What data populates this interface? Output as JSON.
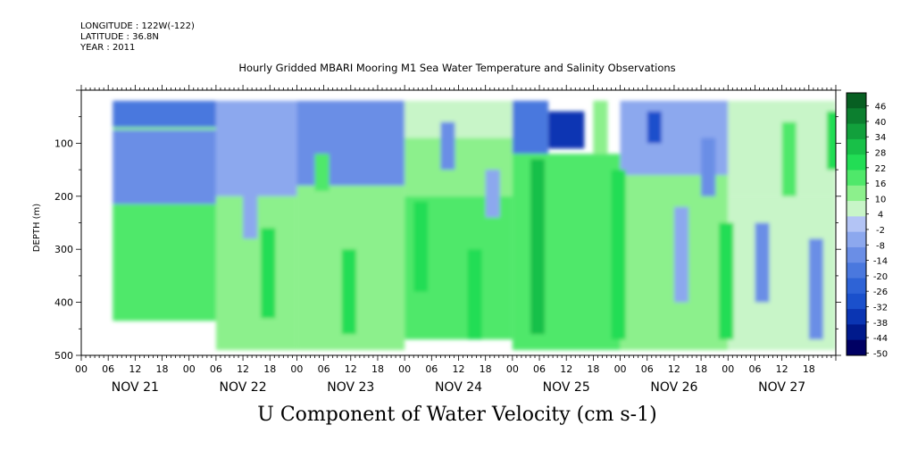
{
  "meta": {
    "longitude": "LONGITUDE : 122W(-122)",
    "latitude": "LATITUDE : 36.8N",
    "year": "YEAR : 2011"
  },
  "title": "Hourly Gridded MBARI Mooring M1 Sea Water Temperature and Salinity Observations",
  "footer": "U Component of Water Velocity (cm s-1)",
  "chart_data": {
    "type": "heatmap",
    "title": "Hourly Gridded MBARI Mooring M1 Sea Water Temperature and Salinity Observations",
    "variable": "U Component of Water Velocity (cm s-1)",
    "ylabel": "DEPTH (m)",
    "ylim": [
      500,
      0
    ],
    "y_ticks": [
      100,
      200,
      300,
      400,
      500
    ],
    "x_hour_ticks": [
      "00",
      "06",
      "12",
      "18",
      "00",
      "06",
      "12",
      "18",
      "00",
      "06",
      "12",
      "18",
      "00",
      "06",
      "12",
      "18",
      "00",
      "06",
      "12",
      "18",
      "00",
      "06",
      "12",
      "18",
      "00",
      "06",
      "12",
      "18"
    ],
    "x_day_labels": [
      "NOV 21",
      "NOV 22",
      "NOV 23",
      "NOV 24",
      "NOV 25",
      "NOV 26",
      "NOV 27"
    ],
    "colorbar": {
      "labels": [
        "46",
        "40",
        "34",
        "28",
        "22",
        "16",
        "10",
        "4",
        "-2",
        "-8",
        "-14",
        "-20",
        "-26",
        "-32",
        "-38",
        "-44",
        "-50"
      ],
      "range": [
        -50,
        49
      ]
    },
    "regions": [
      {
        "t0": 7,
        "t1": 30,
        "d0": 20,
        "d1": 70,
        "v": -16
      },
      {
        "t0": 7,
        "t1": 30,
        "d0": 70,
        "d1": 75,
        "v": 10
      },
      {
        "t0": 7,
        "t1": 30,
        "d0": 75,
        "d1": 215,
        "v": -14
      },
      {
        "t0": 7,
        "t1": 30,
        "d0": 215,
        "d1": 435,
        "v": 18
      },
      {
        "t0": 30,
        "t1": 48,
        "d0": 20,
        "d1": 200,
        "v": -6
      },
      {
        "t0": 30,
        "t1": 48,
        "d0": 200,
        "d1": 490,
        "v": 12
      },
      {
        "t0": 48,
        "t1": 72,
        "d0": 20,
        "d1": 180,
        "v": -10
      },
      {
        "t0": 48,
        "t1": 72,
        "d0": 180,
        "d1": 490,
        "v": 14
      },
      {
        "t0": 72,
        "t1": 96,
        "d0": 20,
        "d1": 90,
        "v": 6
      },
      {
        "t0": 72,
        "t1": 96,
        "d0": 90,
        "d1": 200,
        "v": 12
      },
      {
        "t0": 72,
        "t1": 96,
        "d0": 200,
        "d1": 470,
        "v": 16
      },
      {
        "t0": 96,
        "t1": 104,
        "d0": 20,
        "d1": 120,
        "v": -20
      },
      {
        "t0": 104,
        "t1": 112,
        "d0": 40,
        "d1": 110,
        "v": -34
      },
      {
        "t0": 96,
        "t1": 120,
        "d0": 120,
        "d1": 490,
        "v": 18
      },
      {
        "t0": 120,
        "t1": 144,
        "d0": 20,
        "d1": 160,
        "v": -8
      },
      {
        "t0": 120,
        "t1": 144,
        "d0": 160,
        "d1": 490,
        "v": 10
      },
      {
        "t0": 144,
        "t1": 168,
        "d0": 20,
        "d1": 200,
        "v": 8
      },
      {
        "t0": 144,
        "t1": 168,
        "d0": 200,
        "d1": 490,
        "v": 4
      }
    ],
    "grid": false
  }
}
